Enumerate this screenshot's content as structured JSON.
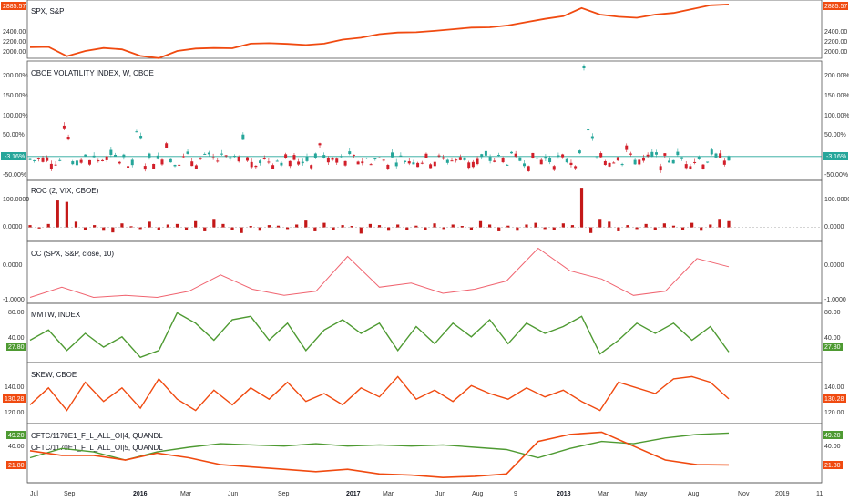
{
  "colors": {
    "spx": "#f04a10",
    "vix_up": "#26a69a",
    "vix_down": "#d21f2a",
    "roc": "#c41818",
    "cc": "#f06470",
    "mmtw": "#4e9a32",
    "skew": "#f04a10",
    "cot_green": "#4e9a32",
    "cot_red": "#f04a10",
    "zero_line": "#26a69a"
  },
  "panels": [
    {
      "id": "spx",
      "title": "SPX, S&P",
      "ticks": [
        "2400.00",
        "2200.00",
        "2000.00"
      ],
      "badge": "2885.57"
    },
    {
      "id": "vix",
      "title": "CBOE VOLATILITY INDEX, W, CBOE",
      "ticks": [
        "200.00%",
        "150.00%",
        "100.00%",
        "50.00%",
        "0.00%",
        "-50.00%"
      ],
      "badge": "-3.16%"
    },
    {
      "id": "roc",
      "title": "ROC (2, VIX, CBOE)",
      "ticks": [
        "100.0000",
        "0.0000"
      ]
    },
    {
      "id": "cc",
      "title": "CC (SPX, S&P, close, 10)",
      "ticks": [
        "0.0000",
        "-1.0000"
      ]
    },
    {
      "id": "mmtw",
      "title": "MMTW, INDEX",
      "ticks": [
        "80.00",
        "40.00"
      ],
      "badge": "27.80"
    },
    {
      "id": "skew",
      "title": "SKEW, CBOE",
      "ticks": [
        "140.00",
        "120.00"
      ],
      "badge": "130.28"
    },
    {
      "id": "cot",
      "title": "CFTC/1170E1_F_L_ALL_OI|4, QUANDL",
      "title2": "CFTC/1170E1_F_L_ALL_OI|5, QUANDL",
      "ticks": [
        "40.00"
      ],
      "badge": "49.20",
      "badge2": "21.80"
    }
  ],
  "x_axis": [
    {
      "label": "Jul",
      "bold": false
    },
    {
      "label": "Sep",
      "bold": false
    },
    {
      "label": "2016",
      "bold": true
    },
    {
      "label": "Mar",
      "bold": false
    },
    {
      "label": "Jun",
      "bold": false
    },
    {
      "label": "Sep",
      "bold": false
    },
    {
      "label": "2017",
      "bold": true
    },
    {
      "label": "Mar",
      "bold": false
    },
    {
      "label": "Jun",
      "bold": false
    },
    {
      "label": "Aug",
      "bold": false
    },
    {
      "label": "9",
      "bold": false
    },
    {
      "label": "2018",
      "bold": true
    },
    {
      "label": "Mar",
      "bold": false
    },
    {
      "label": "May",
      "bold": false
    },
    {
      "label": "Aug",
      "bold": false
    },
    {
      "label": "Nov",
      "bold": false
    },
    {
      "label": "2019",
      "bold": false
    },
    {
      "label": "11",
      "bold": false
    }
  ],
  "chart_data": [
    {
      "type": "line",
      "name": "SPX, S&P",
      "x": [
        "Jul 2015",
        "Aug 2015",
        "Sep 2015",
        "Oct 2015",
        "Nov 2015",
        "Dec 2015",
        "Jan 2016",
        "Feb 2016",
        "Mar 2016",
        "Apr 2016",
        "May 2016",
        "Jun 2016",
        "Jul 2016",
        "Aug 2016",
        "Sep 2016",
        "Oct 2016",
        "Nov 2016",
        "Dec 2016",
        "Jan 2017",
        "Feb 2017",
        "Mar 2017",
        "Apr 2017",
        "May 2017",
        "Jun 2017",
        "Jul 2017",
        "Aug 2017",
        "Sep 2017",
        "Oct 2017",
        "Nov 2017",
        "Dec 2017",
        "Jan 2018",
        "Feb 2018",
        "Mar 2018",
        "Apr 2018",
        "May 2018",
        "Jun 2018",
        "Jul 2018",
        "Aug 2018",
        "Sep 2018"
      ],
      "values": [
        2100,
        2105,
        1935,
        2030,
        2085,
        2060,
        1940,
        1900,
        2030,
        2075,
        2085,
        2080,
        2165,
        2175,
        2160,
        2140,
        2165,
        2240,
        2275,
        2340,
        2370,
        2375,
        2400,
        2430,
        2460,
        2465,
        2500,
        2560,
        2620,
        2670,
        2820,
        2700,
        2660,
        2640,
        2700,
        2730,
        2800,
        2870,
        2885.57
      ],
      "ylim": [
        1930,
        2900
      ]
    },
    {
      "type": "bar",
      "name": "CBOE VOLATILITY INDEX, W, CBOE",
      "unit": "%",
      "note": "weekly percent change candles",
      "key_values": {
        "spike_aug_2015": 70,
        "spike_feb_2018": 200,
        "peak_jan_2016": 55,
        "last": -3.16
      },
      "ylim": [
        -50,
        200
      ]
    },
    {
      "type": "bar",
      "name": "ROC (2, VIX, CBOE)",
      "values": [
        8,
        -4,
        12,
        95,
        90,
        20,
        -10,
        8,
        -12,
        -18,
        14,
        4,
        -6,
        20,
        -8,
        10,
        12,
        -10,
        22,
        -14,
        30,
        12,
        -8,
        -20,
        5,
        -12,
        8,
        6,
        -6,
        10,
        24,
        -14,
        16,
        -10,
        8,
        5,
        -22,
        12,
        8,
        -12,
        10,
        -8,
        6,
        -10,
        14,
        -6,
        10,
        5,
        -8,
        22,
        10,
        -14,
        6,
        -12,
        10,
        16,
        -6,
        -10,
        14,
        8,
        140,
        -20,
        30,
        20,
        -14,
        8,
        -6,
        12,
        -10,
        14,
        6,
        -8,
        16,
        -12,
        10,
        30,
        22
      ],
      "ylim": [
        -40,
        150
      ]
    },
    {
      "type": "line",
      "name": "CC (SPX, S&P, close, 10)",
      "x": [
        "Jul 2015",
        "Sep 2015",
        "Nov 2015",
        "Jan 2016",
        "Mar 2016",
        "May 2016",
        "Jul 2016",
        "Sep 2016",
        "Nov 2016",
        "Jan 2017",
        "Mar 2017",
        "Apr 2017",
        "Jun 2017",
        "Aug 2017",
        "Oct 2017",
        "Dec 2017",
        "Jan 2018",
        "Feb 2018",
        "Mar 2018",
        "May 2018",
        "Jul 2018",
        "Aug 2018",
        "Sep 2018"
      ],
      "values": [
        -0.95,
        -0.7,
        -0.95,
        -0.9,
        -0.95,
        -0.8,
        -0.4,
        -0.75,
        -0.9,
        -0.8,
        0.05,
        -0.7,
        -0.6,
        -0.85,
        -0.75,
        -0.55,
        0.25,
        -0.3,
        -0.5,
        -0.9,
        -0.8,
        0.0,
        -0.2
      ],
      "ylim": [
        -1.05,
        0.35
      ]
    },
    {
      "type": "line",
      "name": "MMTW, INDEX",
      "x": [
        "Jul 2015",
        "Aug 2015",
        "Sep 2015",
        "Oct 2015",
        "Nov 2015",
        "Dec 2015",
        "Jan 2016",
        "Feb 2016",
        "Mar 2016",
        "Apr 2016",
        "May 2016",
        "Jun 2016",
        "Jul 2016",
        "Aug 2016",
        "Sep 2016",
        "Oct 2016",
        "Nov 2016",
        "Dec 2016",
        "Jan 2017",
        "Feb 2017",
        "Mar 2017",
        "Apr 2017",
        "May 2017",
        "Jun 2017",
        "Jul 2017",
        "Aug 2017",
        "Sep 2017",
        "Oct 2017",
        "Nov 2017",
        "Dec 2017",
        "Jan 2018",
        "Feb 2018",
        "Mar 2018",
        "Apr 2018",
        "May 2018",
        "Jun 2018",
        "Jul 2018",
        "Aug 2018",
        "Sep 2018"
      ],
      "values": [
        45,
        60,
        30,
        55,
        35,
        50,
        20,
        30,
        85,
        70,
        45,
        75,
        80,
        45,
        70,
        30,
        60,
        75,
        55,
        70,
        30,
        65,
        40,
        70,
        50,
        75,
        40,
        70,
        55,
        65,
        80,
        25,
        45,
        70,
        55,
        70,
        45,
        65,
        27.8
      ],
      "ylim": [
        15,
        95
      ]
    },
    {
      "type": "line",
      "name": "SKEW, CBOE",
      "x": [
        "Jul 2015",
        "Aug 2015",
        "Sep 2015",
        "Oct 2015",
        "Nov 2015",
        "Dec 2015",
        "Jan 2016",
        "Feb 2016",
        "Mar 2016",
        "Apr 2016",
        "May 2016",
        "Jun 2016",
        "Jul 2016",
        "Aug 2016",
        "Sep 2016",
        "Oct 2016",
        "Nov 2016",
        "Dec 2016",
        "Jan 2017",
        "Feb 2017",
        "Mar 2017",
        "Apr 2017",
        "May 2017",
        "Jun 2017",
        "Jul 2017",
        "Aug 2017",
        "Sep 2017",
        "Oct 2017",
        "Nov 2017",
        "Dec 2017",
        "Jan 2018",
        "Feb 2018",
        "Mar 2018",
        "Apr 2018",
        "May 2018",
        "Jun 2018",
        "Jul 2018",
        "Aug 2018",
        "Sep 2018"
      ],
      "values": [
        125,
        140,
        120,
        145,
        128,
        140,
        122,
        148,
        130,
        120,
        138,
        125,
        140,
        130,
        145,
        128,
        135,
        125,
        140,
        132,
        150,
        130,
        138,
        128,
        142,
        135,
        130,
        140,
        132,
        138,
        128,
        120,
        145,
        140,
        135,
        148,
        150,
        145,
        130.28
      ],
      "ylim": [
        110,
        160
      ]
    },
    {
      "type": "line",
      "name": "CFTC/1170E1_F_L_ALL_OI",
      "x": [
        "Jul 2015",
        "Sep 2015",
        "Nov 2015",
        "Jan 2016",
        "Mar 2016",
        "May 2016",
        "Jul 2016",
        "Sep 2016",
        "Nov 2016",
        "Jan 2017",
        "Mar 2017",
        "May 2017",
        "Jul 2017",
        "Sep 2017",
        "Nov 2017",
        "Jan 2018",
        "Feb 2018",
        "Mar 2018",
        "Apr 2018",
        "May 2018",
        "Jul 2018",
        "Aug 2018",
        "Sep 2018"
      ],
      "series": [
        {
          "name": "CFTC/1170E1_F_L_ALL_OI|4, QUANDL",
          "values": [
            28,
            36,
            33,
            26,
            33,
            37,
            40,
            39,
            38,
            40,
            38,
            39,
            38,
            39,
            37,
            35,
            28,
            36,
            42,
            40,
            45,
            48,
            49.2
          ]
        },
        {
          "name": "CFTC/1170E1_F_L_ALL_OI|5, QUANDL",
          "values": [
            34,
            30,
            30,
            26,
            32,
            28,
            22,
            20,
            18,
            16,
            18,
            14,
            13,
            11,
            12,
            14,
            42,
            48,
            50,
            38,
            26,
            22,
            21.8
          ]
        }
      ],
      "ylim": [
        8,
        55
      ]
    }
  ]
}
